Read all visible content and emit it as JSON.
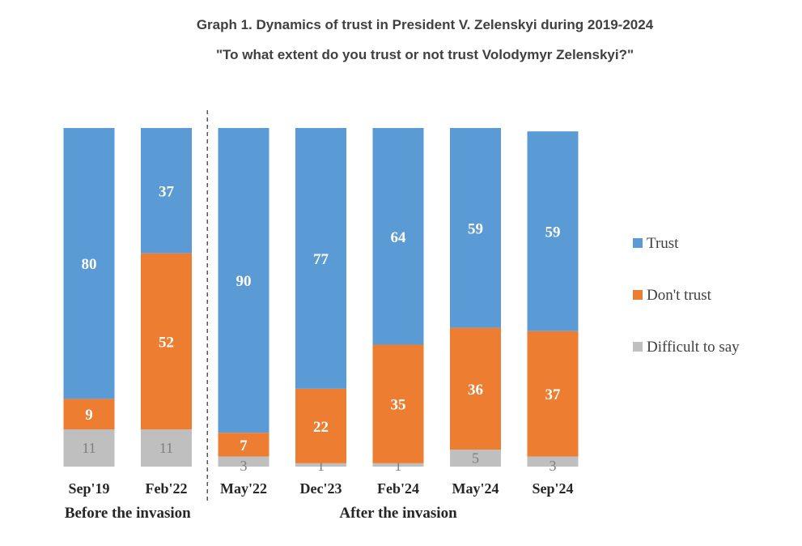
{
  "chart_data": {
    "type": "bar",
    "stacked": true,
    "title": "Graph 1. Dynamics of trust in President V. Zelenskyi during 2019-2024",
    "subtitle": "\"To what extent do you trust or not trust Volodymyr Zelenskyi?\"",
    "categories": [
      "Sep'19",
      "Feb'22",
      "May'22",
      "Dec'23",
      "Feb'24",
      "May'24",
      "Sep'24"
    ],
    "series": [
      {
        "name": "Difficult to say",
        "color": "#bfbfbf",
        "values": [
          11,
          11,
          3,
          1,
          1,
          5,
          3
        ]
      },
      {
        "name": "Don't trust",
        "color": "#ed7d31",
        "values": [
          9,
          52,
          7,
          22,
          35,
          36,
          37
        ]
      },
      {
        "name": "Trust",
        "color": "#5b9bd5",
        "values": [
          80,
          37,
          90,
          77,
          64,
          59,
          59
        ]
      }
    ],
    "legend_order": [
      "Trust",
      "Don't trust",
      "Difficult to say"
    ],
    "legend_position": "right",
    "groups": [
      {
        "label": "Before the invasion",
        "categories": [
          "Sep'19",
          "Feb'22"
        ]
      },
      {
        "label": "After the invasion",
        "categories": [
          "May'22",
          "Dec'23",
          "Feb'24",
          "May'24",
          "Sep'24"
        ]
      }
    ],
    "divider_after": "Feb'22",
    "ylim": [
      0,
      100
    ],
    "grid": false
  }
}
